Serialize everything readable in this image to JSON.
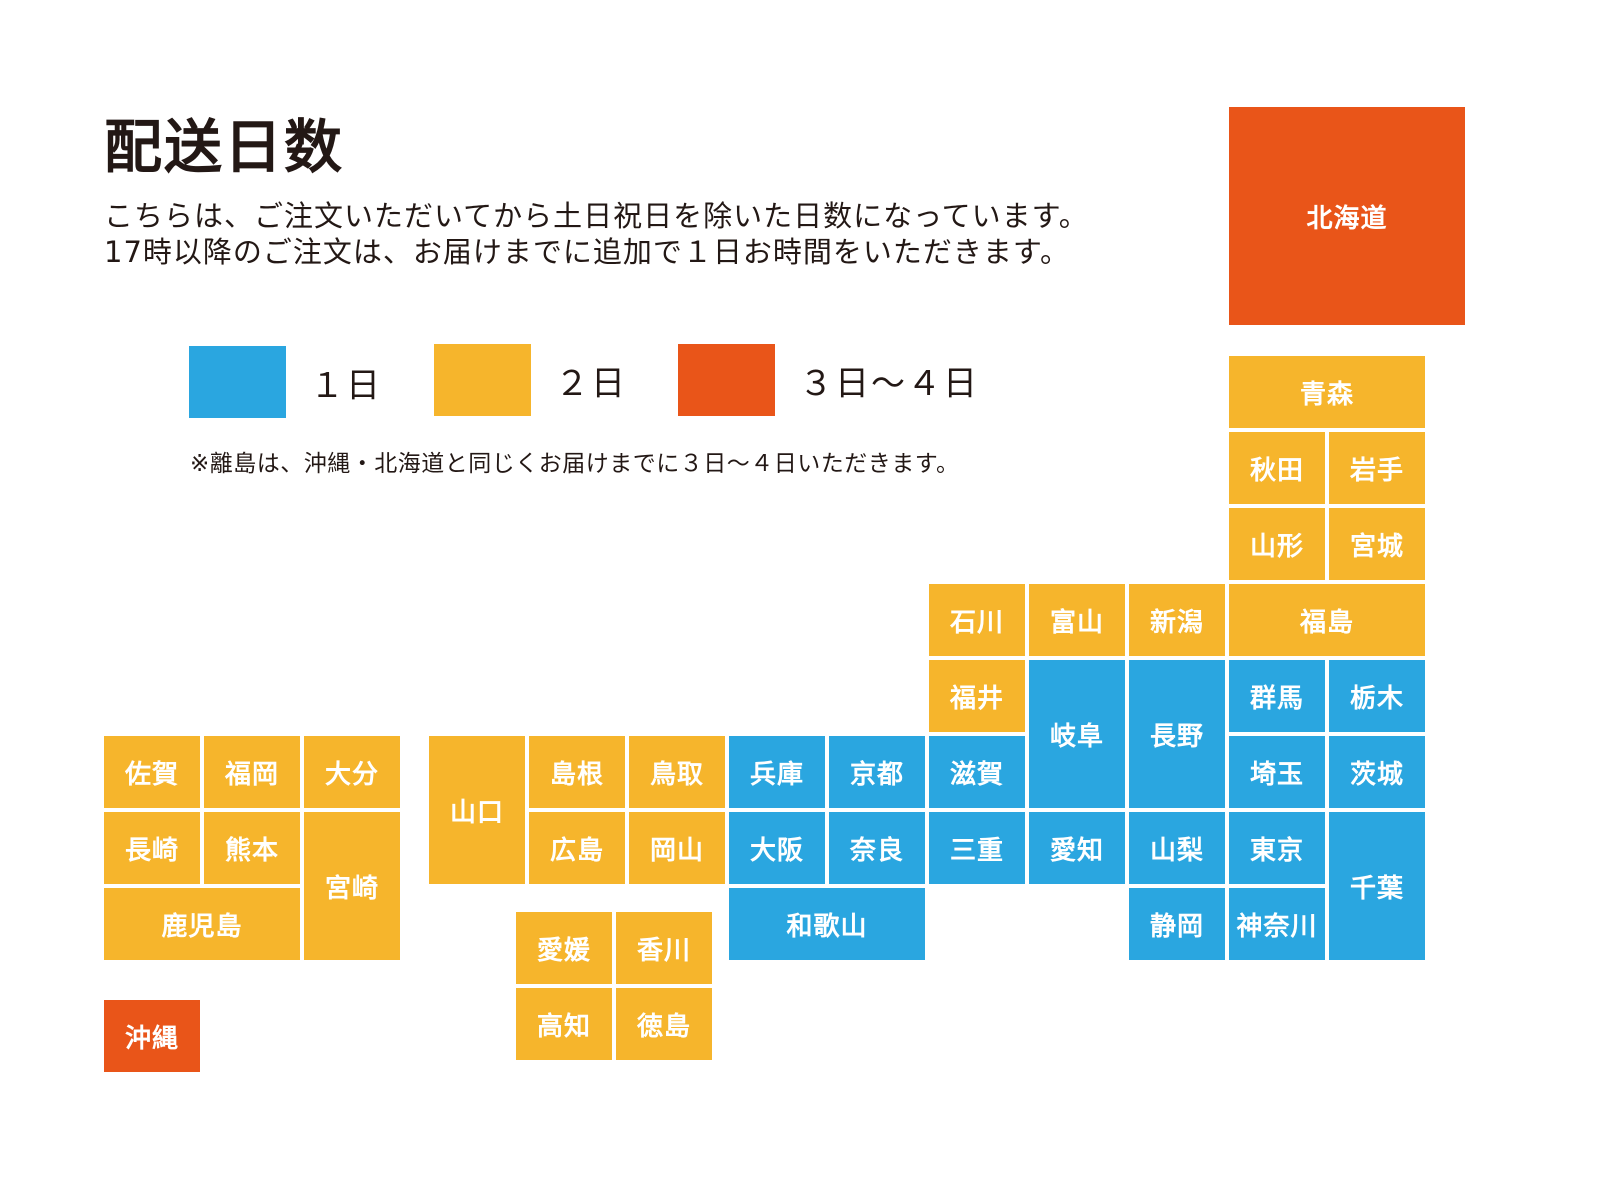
{
  "title": "配送日数",
  "description": [
    "こちらは、ご注文いただいてから土日祝日を除いた日数になっています。",
    "17時以降のご注文は、お届けまでに追加で１日お時間をいただきます。"
  ],
  "legend": [
    {
      "label": "１日",
      "color": "#2aa6e0"
    },
    {
      "label": "２日",
      "color": "#f6b52c"
    },
    {
      "label": "３日〜４日",
      "color": "#e95519"
    }
  ],
  "note": "※離島は、沖縄・北海道と同じくお届けまでに３日〜４日いただきます。",
  "prefectures": {
    "hokkaido": "北海道",
    "aomori": "青森",
    "akita": "秋田",
    "iwate": "岩手",
    "yamagata": "山形",
    "miyagi": "宮城",
    "ishikawa": "石川",
    "toyama": "富山",
    "niigata": "新潟",
    "fukushima": "福島",
    "fukui": "福井",
    "gifu": "岐阜",
    "nagano": "長野",
    "gunma": "群馬",
    "tochigi": "栃木",
    "saga": "佐賀",
    "fukuoka": "福岡",
    "oita": "大分",
    "yamaguchi": "山口",
    "shimane": "島根",
    "tottori": "鳥取",
    "hyogo": "兵庫",
    "kyoto": "京都",
    "shiga": "滋賀",
    "saitama": "埼玉",
    "ibaraki": "茨城",
    "nagasaki": "長崎",
    "kumamoto": "熊本",
    "miyazaki": "宮崎",
    "hiroshima": "広島",
    "okayama": "岡山",
    "osaka": "大阪",
    "nara": "奈良",
    "mie": "三重",
    "aichi": "愛知",
    "yamanashi": "山梨",
    "tokyo": "東京",
    "chiba": "千葉",
    "kagoshima": "鹿児島",
    "wakayama": "和歌山",
    "shizuoka": "静岡",
    "kanagawa": "神奈川",
    "ehime": "愛媛",
    "kagawa": "香川",
    "kochi": "高知",
    "tokushima": "徳島",
    "okinawa": "沖縄"
  }
}
